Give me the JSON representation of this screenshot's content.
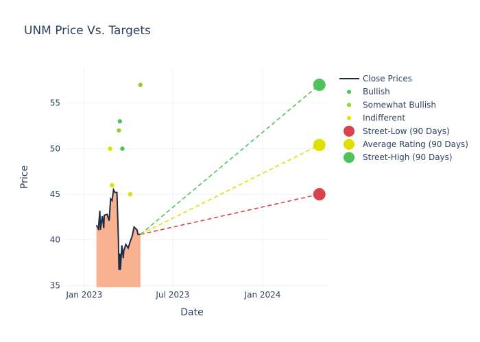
{
  "chart_data": {
    "type": "line",
    "title": "UNM Price Vs. Targets",
    "xlabel": "Date",
    "ylabel": "Price",
    "xlim": [
      "2022-11-23",
      "2024-05-16"
    ],
    "ylim": [
      34.8,
      58.8
    ],
    "x_ticks": [
      {
        "date": "2023-01-01",
        "label": "Jan 2023"
      },
      {
        "date": "2023-07-01",
        "label": "Jul 2023"
      },
      {
        "date": "2024-01-01",
        "label": "Jan 2024"
      }
    ],
    "y_ticks": [
      35,
      40,
      45,
      50,
      55
    ],
    "grid": true,
    "legend_placement": "top-right",
    "colors": {
      "close": "#1f2a44",
      "fill": "#f9b28f",
      "bullish": "#4fc35a",
      "somewhat_bullish": "#9acd32",
      "indifferent": "#e0e000",
      "street_low": "#d9434e",
      "average": "#e0e000",
      "street_high": "#4fc35a"
    },
    "close_prices": {
      "name": "Close Prices",
      "dates": [
        "2023-01-26",
        "2023-01-30",
        "2023-02-02",
        "2023-02-03",
        "2023-02-07",
        "2023-02-10",
        "2023-02-11",
        "2023-02-17",
        "2023-02-21",
        "2023-02-24",
        "2023-02-27",
        "2023-03-02",
        "2023-03-05",
        "2023-03-09",
        "2023-03-12",
        "2023-03-13",
        "2023-03-15",
        "2023-03-16",
        "2023-03-19",
        "2023-03-22",
        "2023-03-23",
        "2023-03-27",
        "2023-04-01",
        "2023-04-05",
        "2023-04-09",
        "2023-04-13",
        "2023-04-19",
        "2023-04-21",
        "2023-04-26"
      ],
      "values": [
        41.6,
        41.2,
        43.2,
        41.1,
        42.6,
        41.3,
        42.7,
        42.8,
        42.1,
        44.5,
        44.3,
        45.5,
        45.2,
        45.2,
        40.0,
        36.7,
        38.5,
        36.7,
        39.4,
        38.0,
        38.8,
        39.5,
        39.1,
        39.8,
        40.4,
        41.4,
        41.1,
        40.6,
        40.6
      ]
    },
    "ratings": [
      {
        "name": "Bullish",
        "points": [
          {
            "date": "2023-03-15",
            "value": 53
          },
          {
            "date": "2023-03-20",
            "value": 50
          }
        ]
      },
      {
        "name": "Somewhat Bullish",
        "points": [
          {
            "date": "2023-03-13",
            "value": 52
          },
          {
            "date": "2023-04-26",
            "value": 57
          }
        ]
      },
      {
        "name": "Indifferent",
        "points": [
          {
            "date": "2023-02-23",
            "value": 50
          },
          {
            "date": "2023-02-27",
            "value": 46
          },
          {
            "date": "2023-04-05",
            "value": 45
          }
        ]
      }
    ],
    "targets": {
      "start": {
        "date": "2023-04-26",
        "value": 40.6
      },
      "end_date": "2024-04-26",
      "series": [
        {
          "name": "Street-Low (90 Days)",
          "value": 45
        },
        {
          "name": "Average Rating (90 Days)",
          "value": 50.4
        },
        {
          "name": "Street-High (90 Days)",
          "value": 57
        }
      ]
    }
  }
}
